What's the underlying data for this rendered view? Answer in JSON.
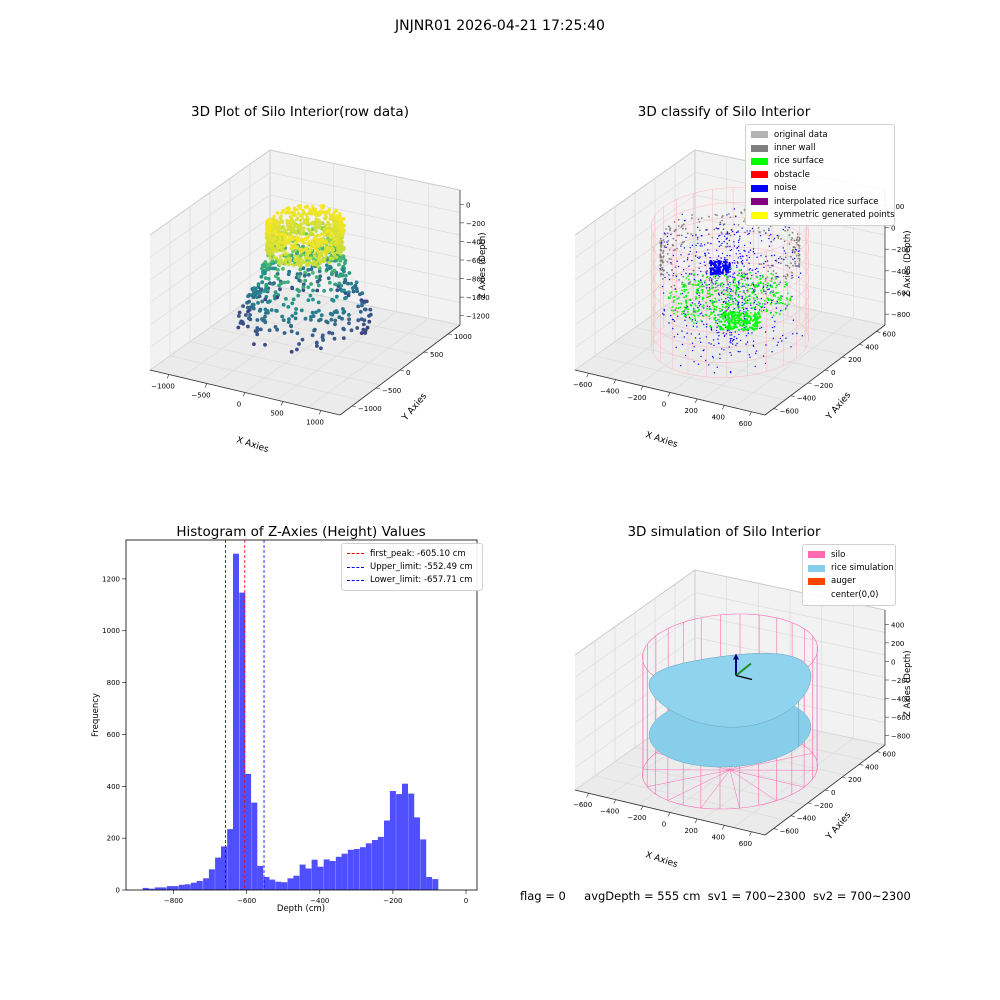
{
  "suptitle": "JNJNR01 2026-04-21 17:25:40",
  "panels": {
    "raw": {
      "title": "3D Plot of Silo Interior(row data)",
      "xlabel": "X Axies",
      "ylabel": "Y Axies",
      "zlabel": "Z Axies (Depth)",
      "xticks": [
        "−1000",
        "−500",
        "0",
        "500",
        "1000"
      ],
      "yticks": [
        "−1000",
        "−500",
        "0",
        "500",
        "1000"
      ],
      "zticks": [
        "0",
        "−200",
        "−400",
        "−600",
        "−800",
        "−1000",
        "−1200"
      ]
    },
    "classify": {
      "title": "3D classify of Silo Interior",
      "xlabel": "X Axies",
      "ylabel": "Y Axies",
      "zlabel": "Z Axies (Depth)",
      "xticks": [
        "−600",
        "−400",
        "−200",
        "0",
        "200",
        "400",
        "600"
      ],
      "yticks": [
        "−600",
        "−400",
        "−200",
        "0",
        "200",
        "400",
        "600"
      ],
      "zticks": [
        "200",
        "0",
        "−200",
        "−400",
        "−600",
        "−800"
      ],
      "legend": [
        {
          "label": "original data",
          "color": "#b3b3b3"
        },
        {
          "label": "inner wall",
          "color": "#808080"
        },
        {
          "label": "rice surface",
          "color": "#00ff00"
        },
        {
          "label": "obstacle",
          "color": "#ff0000"
        },
        {
          "label": "noise",
          "color": "#0000ff"
        },
        {
          "label": "interpolated rice surface",
          "color": "#800080"
        },
        {
          "label": "symmetric generated points",
          "color": "#ffff00"
        }
      ]
    },
    "simulation": {
      "title": "3D simulation of Silo Interior",
      "xlabel": "X Axies",
      "ylabel": "Y Axies",
      "zlabel": "Z Axies (Depth)",
      "xticks": [
        "−600",
        "−400",
        "−200",
        "0",
        "200",
        "400",
        "600"
      ],
      "yticks": [
        "−600",
        "−400",
        "−200",
        "0",
        "200",
        "400",
        "600"
      ],
      "zticks": [
        "400",
        "200",
        "0",
        "−200",
        "−400",
        "−600",
        "−800"
      ],
      "legend": [
        {
          "label": "silo",
          "color": "#ff69b4"
        },
        {
          "label": "rice simulation",
          "color": "#87ceeb"
        },
        {
          "label": "auger",
          "color": "#ff4500"
        },
        {
          "label": "center(0,0)",
          "color": ""
        }
      ]
    }
  },
  "footer": {
    "flag": "flag = 0",
    "avg_depth": "avgDepth = 555 cm",
    "sv1": "sv1 = 700~2300",
    "sv2": "sv2 = 700~2300"
  },
  "chart_data": [
    {
      "type": "scatter",
      "title": "3D Plot of Silo Interior(row data)",
      "xlabel": "X Axies",
      "ylabel": "Y Axies",
      "zlabel": "Z Axies (Depth)",
      "xlim": [
        -1200,
        1200
      ],
      "ylim": [
        -1200,
        1200
      ],
      "zlim": [
        -1300,
        0
      ],
      "colormap": "viridis",
      "grid": true
    },
    {
      "type": "scatter",
      "title": "3D classify of Silo Interior",
      "xlabel": "X Axies",
      "ylabel": "Y Axies",
      "zlabel": "Z Axies (Depth)",
      "xlim": [
        -700,
        700
      ],
      "ylim": [
        -700,
        700
      ],
      "zlim": [
        -900,
        250
      ],
      "series": [
        {
          "name": "original data",
          "color": "#b3b3b3"
        },
        {
          "name": "inner wall",
          "color": "#808080"
        },
        {
          "name": "rice surface",
          "color": "#00ff00"
        },
        {
          "name": "obstacle",
          "color": "#ff0000"
        },
        {
          "name": "noise",
          "color": "#0000ff"
        },
        {
          "name": "interpolated rice surface",
          "color": "#800080"
        },
        {
          "name": "symmetric generated points",
          "color": "#ffff00"
        }
      ],
      "legend_position": "top-right",
      "grid": true
    },
    {
      "type": "bar",
      "title": "Histogram of Z-Axies (Height) Values",
      "xlabel": "Depth (cm)",
      "ylabel": "Frequency",
      "xlim": [
        -930,
        30
      ],
      "ylim": [
        0,
        1350
      ],
      "xticks": [
        -800,
        -600,
        -400,
        -200,
        0
      ],
      "yticks": [
        0,
        200,
        400,
        600,
        800,
        1000,
        1200
      ],
      "bin_width": 16.5,
      "bins": [
        {
          "x": -876,
          "y": 8
        },
        {
          "x": -860,
          "y": 5
        },
        {
          "x": -843,
          "y": 10
        },
        {
          "x": -827,
          "y": 10
        },
        {
          "x": -810,
          "y": 15
        },
        {
          "x": -794,
          "y": 15
        },
        {
          "x": -777,
          "y": 20
        },
        {
          "x": -761,
          "y": 22
        },
        {
          "x": -744,
          "y": 28
        },
        {
          "x": -728,
          "y": 35
        },
        {
          "x": -711,
          "y": 45
        },
        {
          "x": -695,
          "y": 80
        },
        {
          "x": -678,
          "y": 125
        },
        {
          "x": -662,
          "y": 168
        },
        {
          "x": -645,
          "y": 235
        },
        {
          "x": -629,
          "y": 1297
        },
        {
          "x": -612,
          "y": 1147
        },
        {
          "x": -596,
          "y": 448
        },
        {
          "x": -579,
          "y": 337
        },
        {
          "x": -563,
          "y": 93
        },
        {
          "x": -546,
          "y": 50
        },
        {
          "x": -530,
          "y": 40
        },
        {
          "x": -513,
          "y": 32
        },
        {
          "x": -497,
          "y": 30
        },
        {
          "x": -480,
          "y": 45
        },
        {
          "x": -464,
          "y": 55
        },
        {
          "x": -447,
          "y": 98
        },
        {
          "x": -431,
          "y": 83
        },
        {
          "x": -414,
          "y": 117
        },
        {
          "x": -398,
          "y": 90
        },
        {
          "x": -381,
          "y": 118
        },
        {
          "x": -365,
          "y": 112
        },
        {
          "x": -348,
          "y": 128
        },
        {
          "x": -332,
          "y": 140
        },
        {
          "x": -315,
          "y": 155
        },
        {
          "x": -299,
          "y": 158
        },
        {
          "x": -282,
          "y": 165
        },
        {
          "x": -266,
          "y": 180
        },
        {
          "x": -249,
          "y": 193
        },
        {
          "x": -233,
          "y": 205
        },
        {
          "x": -216,
          "y": 268
        },
        {
          "x": -200,
          "y": 382
        },
        {
          "x": -183,
          "y": 370
        },
        {
          "x": -167,
          "y": 410
        },
        {
          "x": -150,
          "y": 372
        },
        {
          "x": -134,
          "y": 280
        },
        {
          "x": -117,
          "y": 195
        },
        {
          "x": -101,
          "y": 50
        },
        {
          "x": -84,
          "y": 42
        }
      ],
      "vlines": [
        {
          "name": "first_peak: -605.10 cm",
          "x": -605.1,
          "color": "#ff0000"
        },
        {
          "name": "Upper_limit: -552.49 cm",
          "x": -552.49,
          "color": "#0000ff"
        },
        {
          "name": "Lower_limit: -657.71 cm",
          "x": -657.71,
          "color": "#0000ff"
        }
      ],
      "bar_color": "#4f4fff",
      "legend_position": "top-right",
      "grid": false
    },
    {
      "type": "surface",
      "title": "3D simulation of Silo Interior",
      "xlabel": "X Axies",
      "ylabel": "Y Axies",
      "zlabel": "Z Axies (Depth)",
      "xlim": [
        -700,
        700
      ],
      "ylim": [
        -700,
        700
      ],
      "zlim": [
        -900,
        450
      ],
      "series": [
        {
          "name": "silo",
          "color": "#ff69b4"
        },
        {
          "name": "rice simulation",
          "color": "#87ceeb"
        },
        {
          "name": "auger",
          "color": "#ff4500"
        },
        {
          "name": "center(0,0)"
        }
      ],
      "legend_position": "top-right",
      "grid": true
    }
  ]
}
